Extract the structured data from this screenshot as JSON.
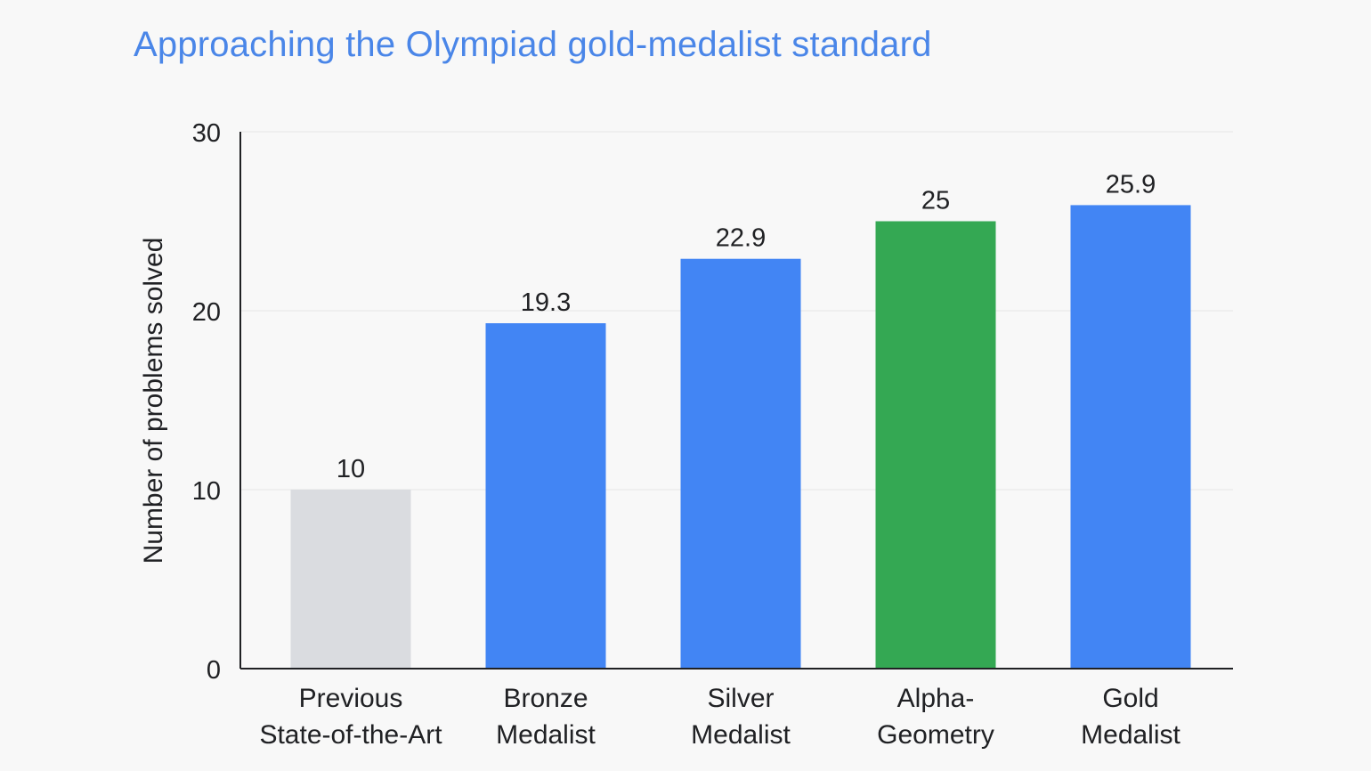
{
  "title": "Approaching the Olympiad gold-medalist standard",
  "colors": {
    "title": "#4a86e8",
    "previous": "#dadce0",
    "medalist": "#4285f4",
    "alphageometry": "#34a853",
    "grid": "#e6e6e6",
    "axis": "#202124"
  },
  "chart_data": {
    "type": "bar",
    "title": "Approaching the Olympiad gold-medalist standard",
    "xlabel": "",
    "ylabel": "Number of problems solved",
    "ylim": [
      0,
      30
    ],
    "yticks": [
      0,
      10,
      20,
      30
    ],
    "grid": true,
    "categories": [
      [
        "Previous",
        "State-of-the-Art"
      ],
      [
        "Bronze",
        "Medalist"
      ],
      [
        "Silver",
        "Medalist"
      ],
      [
        "Alpha-",
        "Geometry"
      ],
      [
        "Gold",
        "Medalist"
      ]
    ],
    "values": [
      10,
      19.3,
      22.9,
      25,
      25.9
    ],
    "value_labels": [
      "10",
      "19.3",
      "22.9",
      "25",
      "25.9"
    ],
    "bar_colors": [
      "#dadce0",
      "#4285f4",
      "#4285f4",
      "#34a853",
      "#4285f4"
    ]
  }
}
